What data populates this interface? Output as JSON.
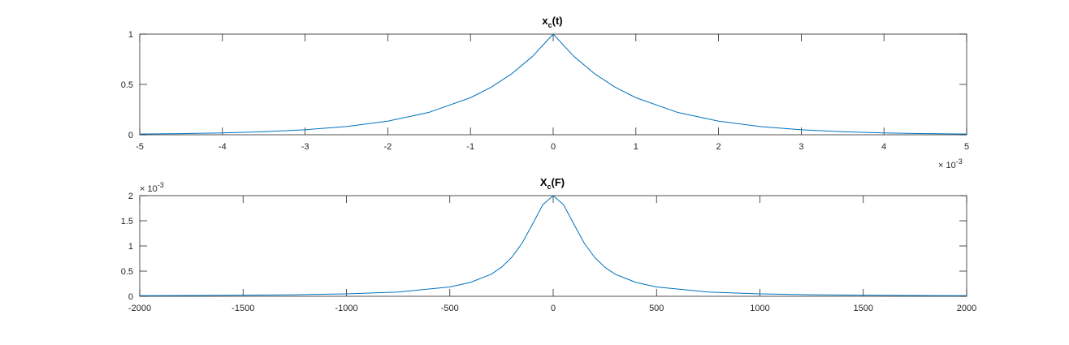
{
  "chart_data": [
    {
      "type": "line",
      "title": {
        "main": "x",
        "sub": "c",
        "rest": "(t)"
      },
      "xlabel": "",
      "ylabel": "",
      "xlim": [
        -0.005,
        0.005
      ],
      "ylim": [
        0,
        1
      ],
      "x_exponent": {
        "base": "× 10",
        "power": "-3"
      },
      "xticks": [
        -5,
        -4,
        -3,
        -2,
        -1,
        0,
        1,
        2,
        3,
        4,
        5
      ],
      "xtick_labels": [
        "-5",
        "-4",
        "-3",
        "-2",
        "-1",
        "0",
        "1",
        "2",
        "3",
        "4",
        "5"
      ],
      "yticks": [
        0,
        0.5,
        1
      ],
      "ytick_labels": [
        "0",
        "0.5",
        "1"
      ],
      "grid": false,
      "series": [
        {
          "color": "#0072BD",
          "points": [
            [
              -0.005,
              0.0067
            ],
            [
              -0.0045,
              0.0111
            ],
            [
              -0.004,
              0.0183
            ],
            [
              -0.0035,
              0.0302
            ],
            [
              -0.003,
              0.0498
            ],
            [
              -0.0025,
              0.0821
            ],
            [
              -0.002,
              0.1353
            ],
            [
              -0.0015,
              0.2231
            ],
            [
              -0.001,
              0.3679
            ],
            [
              -0.00075,
              0.4724
            ],
            [
              -0.0005,
              0.6065
            ],
            [
              -0.00025,
              0.7788
            ],
            [
              0,
              1
            ],
            [
              0.00025,
              0.7788
            ],
            [
              0.0005,
              0.6065
            ],
            [
              0.00075,
              0.4724
            ],
            [
              0.001,
              0.3679
            ],
            [
              0.0015,
              0.2231
            ],
            [
              0.002,
              0.1353
            ],
            [
              0.0025,
              0.0821
            ],
            [
              0.003,
              0.0498
            ],
            [
              0.0035,
              0.0302
            ],
            [
              0.004,
              0.0183
            ],
            [
              0.0045,
              0.0111
            ],
            [
              0.005,
              0.0067
            ]
          ]
        }
      ]
    },
    {
      "type": "line",
      "title": {
        "main": "X",
        "sub": "c",
        "rest": "(F)"
      },
      "xlabel": "",
      "ylabel": "",
      "xlim": [
        -2000,
        2000
      ],
      "ylim": [
        0,
        0.002
      ],
      "y_exponent": {
        "base": "× 10",
        "power": "-3"
      },
      "xticks": [
        -2000,
        -1500,
        -1000,
        -500,
        0,
        500,
        1000,
        1500,
        2000
      ],
      "xtick_labels": [
        "-2000",
        "-1500",
        "-1000",
        "-500",
        "0",
        "500",
        "1000",
        "1500",
        "2000"
      ],
      "yticks": [
        0,
        0.0005,
        0.001,
        0.0015,
        0.002
      ],
      "ytick_labels": [
        "0",
        "0.5",
        "1",
        "1.5",
        "2"
      ],
      "grid": false,
      "series": [
        {
          "color": "#0072BD",
          "points": [
            [
              -2000,
              1.22e-05
            ],
            [
              -1750,
              1.59e-05
            ],
            [
              -1500,
              2.16e-05
            ],
            [
              -1250,
              3.11e-05
            ],
            [
              -1000,
              4.84e-05
            ],
            [
              -750,
              8.55e-05
            ],
            [
              -500,
              0.0001851
            ],
            [
              -400,
              0.0002765
            ],
            [
              -300,
              0.0004383
            ],
            [
              -250,
              0.0005773
            ],
            [
              -200,
              0.0007764
            ],
            [
              -150,
              0.0010584
            ],
            [
              -100,
              0.0014339
            ],
            [
              -50,
              0.0018203
            ],
            [
              0,
              0.002
            ],
            [
              50,
              0.0018203
            ],
            [
              100,
              0.0014339
            ],
            [
              150,
              0.0010584
            ],
            [
              200,
              0.0007764
            ],
            [
              250,
              0.0005773
            ],
            [
              300,
              0.0004383
            ],
            [
              400,
              0.0002765
            ],
            [
              500,
              0.0001851
            ],
            [
              750,
              8.55e-05
            ],
            [
              1000,
              4.84e-05
            ],
            [
              1250,
              3.11e-05
            ],
            [
              1500,
              2.16e-05
            ],
            [
              1750,
              1.59e-05
            ],
            [
              2000,
              1.22e-05
            ]
          ]
        }
      ]
    }
  ]
}
